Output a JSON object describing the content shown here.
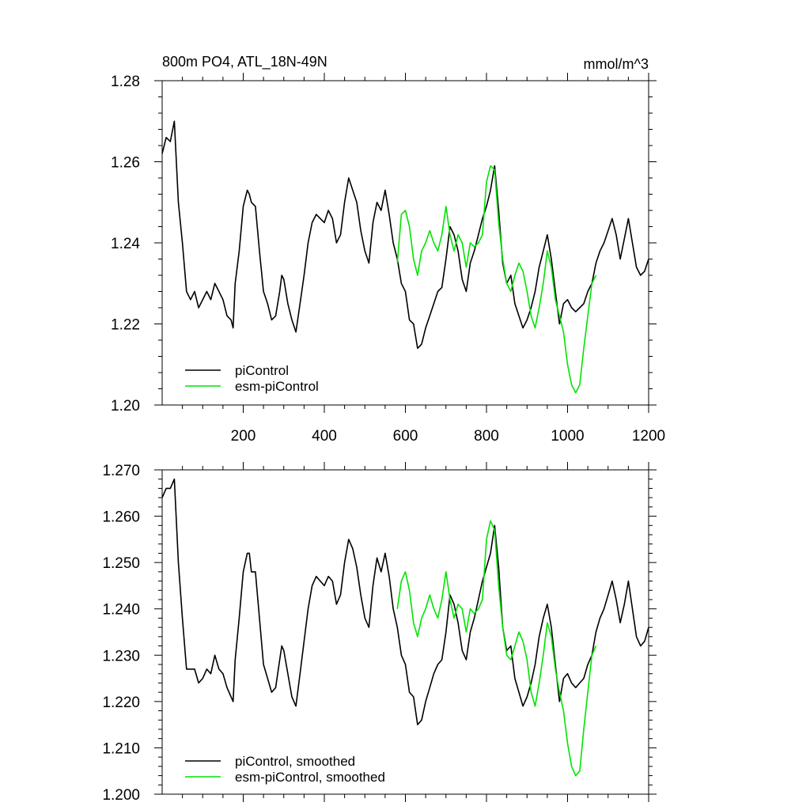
{
  "chart_data": [
    {
      "type": "line",
      "title": "800m PO4, ATL_18N-49N",
      "units": "mmol/m^3",
      "xlim": [
        0,
        1200
      ],
      "ylim": [
        1.2,
        1.28
      ],
      "x_ticks": [
        200,
        400,
        600,
        800,
        1000,
        1200
      ],
      "y_ticks": [
        1.2,
        1.22,
        1.24,
        1.26,
        1.28
      ],
      "y_tick_decimals": 2,
      "grid": false,
      "legend_position": "bottom-left",
      "series": [
        {
          "name": "piControl",
          "color": "#000000",
          "x": [
            0,
            10,
            20,
            30,
            40,
            50,
            60,
            70,
            80,
            90,
            100,
            110,
            120,
            130,
            140,
            150,
            160,
            170,
            175,
            180,
            190,
            200,
            210,
            215,
            220,
            230,
            240,
            250,
            260,
            270,
            280,
            290,
            295,
            300,
            310,
            320,
            330,
            340,
            350,
            360,
            370,
            380,
            390,
            400,
            410,
            420,
            430,
            440,
            450,
            460,
            470,
            480,
            490,
            500,
            510,
            520,
            530,
            540,
            550,
            560,
            570,
            580,
            590,
            600,
            610,
            620,
            630,
            640,
            650,
            660,
            670,
            680,
            690,
            700,
            710,
            720,
            730,
            740,
            750,
            760,
            770,
            780,
            790,
            800,
            810,
            820,
            830,
            840,
            850,
            860,
            870,
            880,
            890,
            900,
            910,
            920,
            930,
            940,
            950,
            960,
            970,
            980,
            990,
            1000,
            1010,
            1020,
            1030,
            1040,
            1050,
            1060,
            1070,
            1080,
            1090,
            1100,
            1110,
            1120,
            1130,
            1140,
            1150,
            1160,
            1170,
            1180,
            1190,
            1200
          ],
          "y": [
            1.262,
            1.266,
            1.265,
            1.27,
            1.25,
            1.24,
            1.228,
            1.226,
            1.228,
            1.224,
            1.226,
            1.228,
            1.226,
            1.23,
            1.228,
            1.226,
            1.222,
            1.221,
            1.219,
            1.23,
            1.238,
            1.249,
            1.253,
            1.252,
            1.25,
            1.249,
            1.238,
            1.228,
            1.225,
            1.221,
            1.222,
            1.228,
            1.232,
            1.231,
            1.225,
            1.221,
            1.218,
            1.225,
            1.232,
            1.24,
            1.245,
            1.247,
            1.246,
            1.245,
            1.248,
            1.246,
            1.24,
            1.242,
            1.25,
            1.256,
            1.253,
            1.25,
            1.243,
            1.238,
            1.235,
            1.245,
            1.25,
            1.248,
            1.253,
            1.247,
            1.24,
            1.236,
            1.23,
            1.228,
            1.221,
            1.22,
            1.214,
            1.215,
            1.219,
            1.222,
            1.225,
            1.228,
            1.229,
            1.236,
            1.244,
            1.242,
            1.238,
            1.231,
            1.228,
            1.235,
            1.238,
            1.242,
            1.246,
            1.249,
            1.253,
            1.259,
            1.248,
            1.235,
            1.23,
            1.232,
            1.225,
            1.222,
            1.219,
            1.221,
            1.224,
            1.228,
            1.234,
            1.238,
            1.242,
            1.236,
            1.228,
            1.22,
            1.225,
            1.226,
            1.224,
            1.223,
            1.224,
            1.225,
            1.228,
            1.23,
            1.235,
            1.238,
            1.24,
            1.243,
            1.246,
            1.242,
            1.236,
            1.241,
            1.246,
            1.24,
            1.234,
            1.232,
            1.233,
            1.236
          ]
        },
        {
          "name": "esm-piControl",
          "color": "#00e400",
          "x": [
            580,
            590,
            600,
            610,
            620,
            630,
            640,
            650,
            660,
            670,
            680,
            690,
            700,
            710,
            720,
            730,
            740,
            750,
            760,
            770,
            780,
            790,
            800,
            810,
            820,
            830,
            840,
            850,
            860,
            870,
            880,
            890,
            900,
            910,
            920,
            930,
            940,
            950,
            960,
            970,
            980,
            990,
            1000,
            1010,
            1020,
            1030,
            1040,
            1050,
            1060,
            1070
          ],
          "y": [
            1.235,
            1.247,
            1.248,
            1.244,
            1.236,
            1.232,
            1.238,
            1.24,
            1.243,
            1.24,
            1.238,
            1.242,
            1.249,
            1.242,
            1.238,
            1.242,
            1.24,
            1.234,
            1.24,
            1.239,
            1.24,
            1.242,
            1.255,
            1.259,
            1.258,
            1.245,
            1.236,
            1.23,
            1.228,
            1.232,
            1.235,
            1.233,
            1.228,
            1.222,
            1.219,
            1.224,
            1.23,
            1.238,
            1.234,
            1.226,
            1.222,
            1.218,
            1.21,
            1.205,
            1.203,
            1.205,
            1.214,
            1.222,
            1.23,
            1.232
          ]
        }
      ]
    },
    {
      "type": "line",
      "xlim": [
        0,
        1200
      ],
      "ylim": [
        1.2,
        1.27
      ],
      "x_ticks": [
        200,
        400,
        600,
        800,
        1000,
        1200
      ],
      "y_ticks": [
        1.2,
        1.21,
        1.22,
        1.23,
        1.24,
        1.25,
        1.26,
        1.27
      ],
      "y_tick_decimals": 3,
      "grid": false,
      "legend_position": "bottom-left",
      "series": [
        {
          "name": "piControl, smoothed",
          "color": "#000000",
          "x": [
            0,
            10,
            20,
            30,
            40,
            50,
            60,
            70,
            80,
            90,
            100,
            110,
            120,
            130,
            140,
            150,
            160,
            170,
            175,
            180,
            190,
            200,
            210,
            215,
            220,
            230,
            240,
            250,
            260,
            270,
            280,
            290,
            295,
            300,
            310,
            320,
            330,
            340,
            350,
            360,
            370,
            380,
            390,
            400,
            410,
            420,
            430,
            440,
            450,
            460,
            470,
            480,
            490,
            500,
            510,
            520,
            530,
            540,
            550,
            560,
            570,
            580,
            590,
            600,
            610,
            620,
            630,
            640,
            650,
            660,
            670,
            680,
            690,
            700,
            710,
            720,
            730,
            740,
            750,
            760,
            770,
            780,
            790,
            800,
            810,
            820,
            830,
            840,
            850,
            860,
            870,
            880,
            890,
            900,
            910,
            920,
            930,
            940,
            950,
            960,
            970,
            980,
            990,
            1000,
            1010,
            1020,
            1030,
            1040,
            1050,
            1060,
            1070,
            1080,
            1090,
            1100,
            1110,
            1120,
            1130,
            1140,
            1150,
            1160,
            1170,
            1180,
            1190,
            1200
          ],
          "y": [
            1.264,
            1.266,
            1.266,
            1.268,
            1.25,
            1.238,
            1.227,
            1.227,
            1.227,
            1.224,
            1.225,
            1.227,
            1.226,
            1.23,
            1.227,
            1.226,
            1.223,
            1.221,
            1.22,
            1.229,
            1.238,
            1.248,
            1.252,
            1.252,
            1.248,
            1.248,
            1.238,
            1.228,
            1.225,
            1.222,
            1.223,
            1.229,
            1.232,
            1.231,
            1.226,
            1.221,
            1.219,
            1.226,
            1.233,
            1.24,
            1.245,
            1.247,
            1.246,
            1.245,
            1.247,
            1.246,
            1.241,
            1.243,
            1.25,
            1.255,
            1.253,
            1.249,
            1.243,
            1.238,
            1.236,
            1.245,
            1.251,
            1.248,
            1.252,
            1.247,
            1.24,
            1.236,
            1.23,
            1.228,
            1.222,
            1.221,
            1.215,
            1.216,
            1.22,
            1.223,
            1.226,
            1.228,
            1.229,
            1.235,
            1.243,
            1.241,
            1.237,
            1.231,
            1.229,
            1.235,
            1.238,
            1.242,
            1.246,
            1.249,
            1.252,
            1.258,
            1.249,
            1.236,
            1.231,
            1.232,
            1.225,
            1.222,
            1.219,
            1.221,
            1.224,
            1.228,
            1.234,
            1.238,
            1.241,
            1.236,
            1.228,
            1.22,
            1.225,
            1.226,
            1.224,
            1.223,
            1.224,
            1.225,
            1.228,
            1.23,
            1.235,
            1.238,
            1.24,
            1.243,
            1.246,
            1.242,
            1.237,
            1.241,
            1.246,
            1.24,
            1.234,
            1.232,
            1.233,
            1.236
          ]
        },
        {
          "name": "esm-piControl, smoothed",
          "color": "#00e400",
          "x": [
            580,
            590,
            600,
            610,
            620,
            630,
            640,
            650,
            660,
            670,
            680,
            690,
            700,
            710,
            720,
            730,
            740,
            750,
            760,
            770,
            780,
            790,
            800,
            810,
            820,
            830,
            840,
            850,
            860,
            870,
            880,
            890,
            900,
            910,
            920,
            930,
            940,
            950,
            960,
            970,
            980,
            990,
            1000,
            1010,
            1020,
            1030,
            1040,
            1050,
            1060,
            1070
          ],
          "y": [
            1.24,
            1.246,
            1.248,
            1.244,
            1.237,
            1.234,
            1.238,
            1.24,
            1.243,
            1.24,
            1.238,
            1.242,
            1.248,
            1.242,
            1.238,
            1.241,
            1.24,
            1.235,
            1.24,
            1.239,
            1.24,
            1.242,
            1.255,
            1.259,
            1.257,
            1.245,
            1.236,
            1.23,
            1.229,
            1.232,
            1.235,
            1.233,
            1.229,
            1.222,
            1.219,
            1.224,
            1.23,
            1.237,
            1.234,
            1.227,
            1.222,
            1.218,
            1.211,
            1.206,
            1.204,
            1.205,
            1.214,
            1.222,
            1.23,
            1.232
          ]
        }
      ]
    }
  ]
}
